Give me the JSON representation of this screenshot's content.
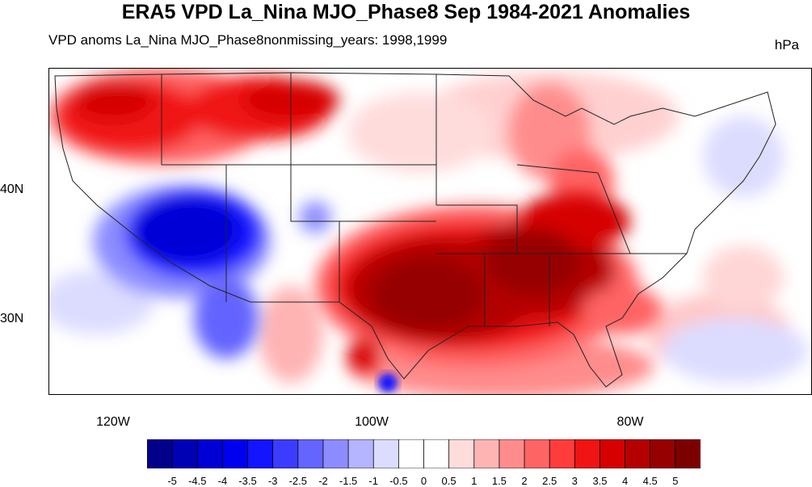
{
  "title": "ERA5 VPD La_Nina MJO_Phase8 Sep 1984-2021 Anomalies",
  "subtitle_left": "VPD anoms La_Nina MJO_Phase8nonmissing_years: 1998,1999",
  "units": "hPa",
  "lat_labels": [
    "40N",
    "30N"
  ],
  "lon_labels": [
    "120W",
    "100W",
    "80W"
  ],
  "colorbar": {
    "labels": [
      "-5",
      "-4.5",
      "-4",
      "-3.5",
      "-3",
      "-2.5",
      "-2",
      "-1.5",
      "-1",
      "-0.5",
      "0",
      "0.5",
      "1",
      "1.5",
      "2",
      "2.5",
      "3",
      "3.5",
      "4",
      "4.5",
      "5"
    ],
    "colors": [
      "#00008b",
      "#0000b4",
      "#0000d6",
      "#0000f0",
      "#1414ff",
      "#3c3cff",
      "#6464ff",
      "#8c8cff",
      "#b4b4ff",
      "#dcdcff",
      "#ffffff",
      "#ffffff",
      "#ffdcdc",
      "#ffb4b4",
      "#ff8c8c",
      "#ff6464",
      "#ff3c3c",
      "#f01414",
      "#d60000",
      "#b40000",
      "#960000",
      "#7d0000"
    ]
  },
  "map_data": {
    "region": "Contiguous United States",
    "variable": "VPD anomaly",
    "lat_range": [
      24,
      50
    ],
    "lon_range": [
      -125,
      -66
    ]
  }
}
